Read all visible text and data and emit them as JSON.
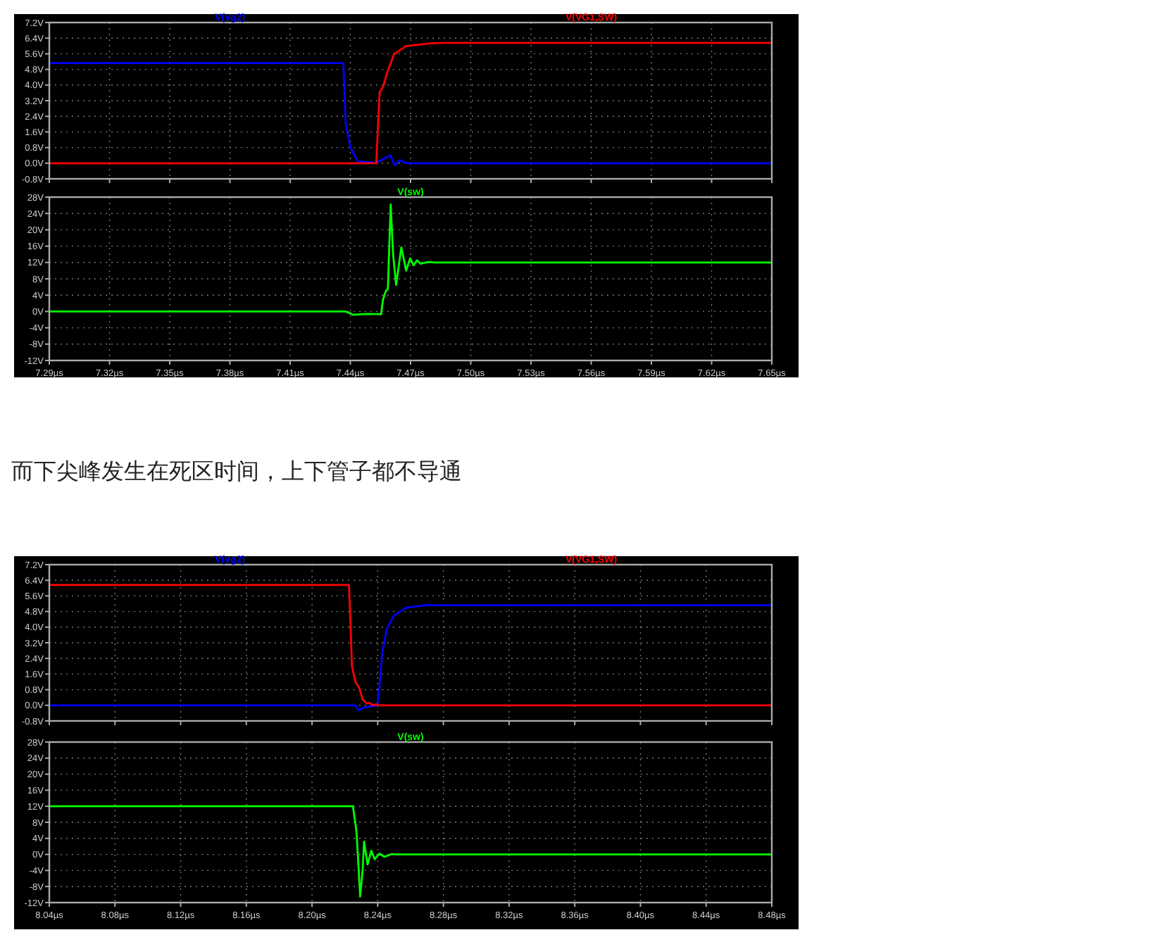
{
  "chart_data": [
    {
      "type": "line",
      "legend": "top",
      "grid": true,
      "tick_labels": "y",
      "xlim": [
        7.29,
        7.65
      ],
      "xticks": [
        {
          "value": 7.29,
          "label": null
        },
        {
          "value": 7.32,
          "label": null
        },
        {
          "value": 7.35,
          "label": null
        },
        {
          "value": 7.38,
          "label": null
        },
        {
          "value": 7.41,
          "label": null
        },
        {
          "value": 7.44,
          "label": null
        },
        {
          "value": 7.47,
          "label": null
        },
        {
          "value": 7.5,
          "label": null
        },
        {
          "value": 7.53,
          "label": null
        },
        {
          "value": 7.56,
          "label": null
        },
        {
          "value": 7.59,
          "label": null
        },
        {
          "value": 7.62,
          "label": null
        },
        {
          "value": 7.65,
          "label": null
        }
      ],
      "ylim": [
        -0.8,
        7.2
      ],
      "yticks": [
        {
          "value": -0.8,
          "label": "-0.8V"
        },
        {
          "value": 0,
          "label": "0.0V"
        },
        {
          "value": 0.8,
          "label": "0.8V"
        },
        {
          "value": 1.6,
          "label": "1.6V"
        },
        {
          "value": 2.4,
          "label": "2.4V"
        },
        {
          "value": 3.2,
          "label": "3.2V"
        },
        {
          "value": 4,
          "label": "4.0V"
        },
        {
          "value": 4.8,
          "label": "4.8V"
        },
        {
          "value": 5.6,
          "label": "5.6V"
        },
        {
          "value": 6.4,
          "label": "6.4V"
        },
        {
          "value": 7.2,
          "label": "7.2V"
        }
      ],
      "series": [
        {
          "name": "V(vg2)",
          "color": "#0000ff",
          "x": [
            7.29,
            7.4365,
            7.4377,
            7.44,
            7.4437,
            7.451,
            7.4525,
            7.46,
            7.462,
            7.4647,
            7.468,
            7.65
          ],
          "values": [
            5.12,
            5.12,
            2.0,
            0.8,
            0.1,
            0.03,
            0,
            0.4,
            -0.1,
            0.15,
            0,
            0
          ]
        },
        {
          "name": "V(VG1,SW)",
          "color": "#ff0000",
          "x": [
            7.29,
            7.4529,
            7.4546,
            7.4563,
            7.4582,
            7.4618,
            7.4678,
            7.48,
            7.487,
            7.65
          ],
          "values": [
            0,
            0,
            3.64,
            3.9,
            4.6,
            5.58,
            6.0,
            6.13,
            6.16,
            6.16
          ]
        }
      ]
    },
    {
      "type": "line",
      "legend": "top",
      "grid": true,
      "xlim": [
        7.29,
        7.65
      ],
      "xticks": [
        {
          "value": 7.29,
          "label": "7.29µs"
        },
        {
          "value": 7.32,
          "label": "7.32µs"
        },
        {
          "value": 7.35,
          "label": "7.35µs"
        },
        {
          "value": 7.38,
          "label": "7.38µs"
        },
        {
          "value": 7.41,
          "label": "7.41µs"
        },
        {
          "value": 7.44,
          "label": "7.44µs"
        },
        {
          "value": 7.47,
          "label": "7.47µs"
        },
        {
          "value": 7.5,
          "label": "7.50µs"
        },
        {
          "value": 7.53,
          "label": "7.53µs"
        },
        {
          "value": 7.56,
          "label": "7.56µs"
        },
        {
          "value": 7.59,
          "label": "7.59µs"
        },
        {
          "value": 7.62,
          "label": "7.62µs"
        },
        {
          "value": 7.65,
          "label": "7.65µs"
        }
      ],
      "ylim": [
        -12,
        28
      ],
      "yticks": [
        {
          "value": -12,
          "label": "-12V"
        },
        {
          "value": -8,
          "label": "-8V"
        },
        {
          "value": -4,
          "label": "-4V"
        },
        {
          "value": 0,
          "label": "0V"
        },
        {
          "value": 4,
          "label": "4V"
        },
        {
          "value": 8,
          "label": "8V"
        },
        {
          "value": 12,
          "label": "12V"
        },
        {
          "value": 16,
          "label": "16V"
        },
        {
          "value": 20,
          "label": "20V"
        },
        {
          "value": 24,
          "label": "24V"
        },
        {
          "value": 28,
          "label": "28V"
        }
      ],
      "series": [
        {
          "name": "V(sw)",
          "color": "#00ff00",
          "x": [
            7.29,
            7.4377,
            7.4413,
            7.4485,
            7.4553,
            7.4563,
            7.4577,
            7.4587,
            7.4601,
            7.4613,
            7.4628,
            7.4654,
            7.4678,
            7.4698,
            7.4715,
            7.4732,
            7.475,
            7.4787,
            7.4823,
            7.65
          ],
          "values": [
            0,
            0,
            -0.8,
            -0.6,
            -0.7,
            3,
            5,
            5.5,
            26.2,
            14,
            6.5,
            15.7,
            10,
            13,
            11.3,
            12.5,
            11.7,
            12.1,
            12,
            12
          ]
        }
      ]
    },
    {
      "type": "line",
      "title": "而下尖峰发生在死区时间，上下管子都不导通",
      "legend": "top",
      "grid": true,
      "tick_labels": "y",
      "xlim": [
        8.04,
        8.48
      ],
      "xticks": [
        {
          "value": 8.04,
          "label": null
        },
        {
          "value": 8.08,
          "label": null
        },
        {
          "value": 8.12,
          "label": null
        },
        {
          "value": 8.16,
          "label": null
        },
        {
          "value": 8.2,
          "label": null
        },
        {
          "value": 8.24,
          "label": null
        },
        {
          "value": 8.28,
          "label": null
        },
        {
          "value": 8.32,
          "label": null
        },
        {
          "value": 8.36,
          "label": null
        },
        {
          "value": 8.4,
          "label": null
        },
        {
          "value": 8.44,
          "label": null
        },
        {
          "value": 8.48,
          "label": null
        }
      ],
      "ylim": [
        -0.8,
        7.2
      ],
      "yticks": [
        {
          "value": -0.8,
          "label": "-0.8V"
        },
        {
          "value": 0,
          "label": "0.0V"
        },
        {
          "value": 0.8,
          "label": "0.8V"
        },
        {
          "value": 1.6,
          "label": "1.6V"
        },
        {
          "value": 2.4,
          "label": "2.4V"
        },
        {
          "value": 3.2,
          "label": "3.2V"
        },
        {
          "value": 4,
          "label": "4.0V"
        },
        {
          "value": 4.8,
          "label": "4.8V"
        },
        {
          "value": 5.6,
          "label": "5.6V"
        },
        {
          "value": 6.4,
          "label": "6.4V"
        },
        {
          "value": 7.2,
          "label": "7.2V"
        }
      ],
      "series": [
        {
          "name": "V(vg2)",
          "color": "#0000ff",
          "x": [
            8.04,
            8.2264,
            8.2284,
            8.2323,
            8.2397,
            8.2411,
            8.2426,
            8.2455,
            8.25,
            8.2573,
            8.2691,
            8.48
          ],
          "values": [
            0,
            0,
            -0.25,
            -0.1,
            0,
            1.0,
            2.6,
            3.9,
            4.6,
            5.0,
            5.12,
            5.12
          ]
        },
        {
          "name": "V(VG1,SW)",
          "color": "#ff0000",
          "x": [
            8.04,
            8.2225,
            8.2234,
            8.2243,
            8.2264,
            8.2287,
            8.2308,
            8.2332,
            8.2352,
            8.2367,
            8.239,
            8.2411,
            8.48
          ],
          "values": [
            6.16,
            6.16,
            4.2,
            2.0,
            1.2,
            0.9,
            0.3,
            0.1,
            0.12,
            0,
            0.05,
            0,
            0
          ]
        }
      ]
    },
    {
      "type": "line",
      "legend": "top",
      "grid": true,
      "xlim": [
        8.04,
        8.48
      ],
      "xticks": [
        {
          "value": 8.04,
          "label": "8.04µs"
        },
        {
          "value": 8.08,
          "label": "8.08µs"
        },
        {
          "value": 8.12,
          "label": "8.12µs"
        },
        {
          "value": 8.16,
          "label": "8.16µs"
        },
        {
          "value": 8.2,
          "label": "8.20µs"
        },
        {
          "value": 8.24,
          "label": "8.24µs"
        },
        {
          "value": 8.28,
          "label": "8.28µs"
        },
        {
          "value": 8.32,
          "label": "8.32µs"
        },
        {
          "value": 8.36,
          "label": "8.36µs"
        },
        {
          "value": 8.4,
          "label": "8.40µs"
        },
        {
          "value": 8.44,
          "label": "8.44µs"
        },
        {
          "value": 8.48,
          "label": "8.48µs"
        }
      ],
      "ylim": [
        -12,
        28
      ],
      "yticks": [
        {
          "value": -12,
          "label": "-12V"
        },
        {
          "value": -8,
          "label": "-8V"
        },
        {
          "value": -4,
          "label": "-4V"
        },
        {
          "value": 0,
          "label": "0V"
        },
        {
          "value": 4,
          "label": "4V"
        },
        {
          "value": 8,
          "label": "8V"
        },
        {
          "value": 12,
          "label": "12V"
        },
        {
          "value": 16,
          "label": "16V"
        },
        {
          "value": 20,
          "label": "20V"
        },
        {
          "value": 24,
          "label": "24V"
        },
        {
          "value": 28,
          "label": "28V"
        }
      ],
      "series": [
        {
          "name": "V(sw)",
          "color": "#00ff00",
          "x": [
            8.04,
            8.2249,
            8.227,
            8.2279,
            8.2293,
            8.2308,
            8.2317,
            8.2338,
            8.2361,
            8.2382,
            8.2411,
            8.2441,
            8.2485,
            8.2514,
            8.48
          ],
          "values": [
            12,
            12,
            6,
            0,
            -10.5,
            -4,
            3.2,
            -2.5,
            0.9,
            -1.2,
            0.2,
            -0.6,
            0.1,
            0,
            0
          ]
        }
      ]
    }
  ]
}
